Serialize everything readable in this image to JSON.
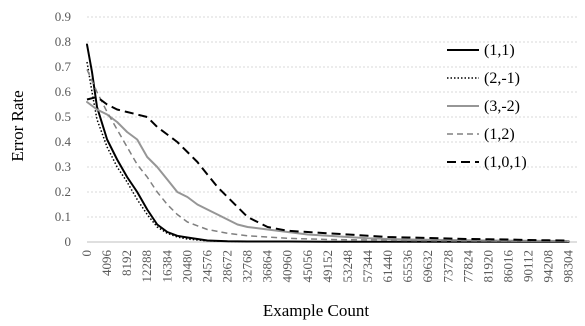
{
  "chart_data": {
    "type": "line",
    "title": "",
    "xlabel": "Example Count",
    "ylabel": "Error Rate",
    "ylim": [
      0,
      0.9
    ],
    "yticks": [
      0,
      0.1,
      0.2,
      0.3,
      0.4,
      0.5,
      0.6,
      0.7,
      0.8,
      0.9
    ],
    "ytick_labels": [
      "0",
      "0.1",
      "0.2",
      "0.3",
      "0.4",
      "0.5",
      "0.6",
      "0.7",
      "0.8",
      "0.9"
    ],
    "xlim": [
      0,
      100000
    ],
    "xticks": [
      0,
      4096,
      8192,
      12288,
      16384,
      20480,
      24576,
      28672,
      32768,
      36864,
      40960,
      45056,
      49152,
      53248,
      57344,
      61440,
      65536,
      69632,
      73728,
      77824,
      81920,
      86016,
      90112,
      94208,
      98304
    ],
    "grid": true,
    "legend_position": "right",
    "series": [
      {
        "name": "(1,1)",
        "color": "#000000",
        "dash": "solid",
        "width": 2,
        "x": [
          0,
          1024,
          2048,
          4096,
          6144,
          8192,
          10240,
          12288,
          14336,
          16384,
          18432,
          20480,
          22528,
          24576,
          28672,
          32768,
          40960,
          49152,
          57344,
          65536,
          73728,
          81920,
          90112,
          98304
        ],
        "y": [
          0.79,
          0.68,
          0.54,
          0.41,
          0.33,
          0.26,
          0.2,
          0.13,
          0.07,
          0.04,
          0.025,
          0.018,
          0.012,
          0.006,
          0.003,
          0.002,
          0.002,
          0.001,
          0.001,
          0.001,
          0.001,
          0.001,
          0.001,
          0.001
        ]
      },
      {
        "name": "(2,-1)",
        "color": "#000000",
        "dash": "dot",
        "width": 1.5,
        "x": [
          0,
          1024,
          2048,
          4096,
          6144,
          8192,
          10240,
          12288,
          14336,
          16384,
          18432,
          20480,
          22528,
          24576,
          28672,
          32768,
          40960,
          49152,
          57344,
          65536,
          73728,
          81920,
          90112,
          98304
        ],
        "y": [
          0.72,
          0.6,
          0.49,
          0.38,
          0.3,
          0.24,
          0.17,
          0.11,
          0.06,
          0.035,
          0.02,
          0.012,
          0.008,
          0.005,
          0.003,
          0.002,
          0.001,
          0.001,
          0.001,
          0.001,
          0.001,
          0.001,
          0.001,
          0.001
        ]
      },
      {
        "name": "(3,-2)",
        "color": "#969696",
        "dash": "solid",
        "width": 2,
        "x": [
          0,
          2048,
          4096,
          6144,
          8192,
          10240,
          12288,
          14336,
          16384,
          18432,
          20480,
          22528,
          24576,
          26624,
          28672,
          30720,
          32768,
          36864,
          40960,
          45056,
          49152,
          53248,
          57344,
          61440,
          65536,
          73728,
          81920,
          90112,
          98304
        ],
        "y": [
          0.56,
          0.53,
          0.51,
          0.48,
          0.44,
          0.41,
          0.34,
          0.3,
          0.25,
          0.2,
          0.18,
          0.15,
          0.13,
          0.11,
          0.09,
          0.07,
          0.06,
          0.05,
          0.04,
          0.03,
          0.025,
          0.02,
          0.015,
          0.012,
          0.01,
          0.008,
          0.006,
          0.005,
          0.004
        ]
      },
      {
        "name": "(1,2)",
        "color": "#808080",
        "dash": "dash",
        "width": 1.5,
        "x": [
          0,
          2048,
          4096,
          6144,
          8192,
          10240,
          12288,
          14336,
          16384,
          18432,
          20480,
          22528,
          24576,
          28672,
          32768,
          36864,
          40960,
          49152,
          57344,
          65536,
          73728,
          81920,
          90112,
          98304
        ],
        "y": [
          0.69,
          0.6,
          0.52,
          0.45,
          0.38,
          0.31,
          0.26,
          0.2,
          0.15,
          0.11,
          0.08,
          0.065,
          0.05,
          0.035,
          0.025,
          0.02,
          0.015,
          0.01,
          0.008,
          0.006,
          0.005,
          0.004,
          0.003,
          0.003
        ]
      },
      {
        "name": "(1,0,1)",
        "color": "#000000",
        "dash": "longdash",
        "width": 2,
        "x": [
          0,
          2048,
          4096,
          6144,
          8192,
          10240,
          12288,
          14336,
          16384,
          18432,
          20480,
          22528,
          24576,
          26624,
          28672,
          30720,
          32768,
          34816,
          36864,
          40960,
          45056,
          49152,
          53248,
          57344,
          61440,
          65536,
          69632,
          73728,
          77824,
          81920,
          86016,
          90112,
          94208,
          98304
        ],
        "y": [
          0.57,
          0.58,
          0.55,
          0.53,
          0.52,
          0.51,
          0.5,
          0.46,
          0.43,
          0.4,
          0.36,
          0.32,
          0.27,
          0.22,
          0.18,
          0.14,
          0.1,
          0.08,
          0.06,
          0.045,
          0.04,
          0.035,
          0.03,
          0.025,
          0.02,
          0.018,
          0.016,
          0.014,
          0.012,
          0.011,
          0.01,
          0.008,
          0.007,
          0.006
        ]
      }
    ]
  }
}
